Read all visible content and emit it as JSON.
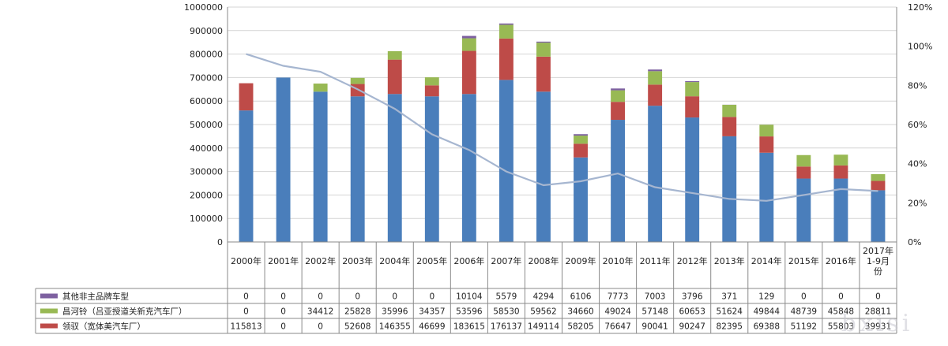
{
  "chart_data": {
    "type": "bar",
    "stacked": true,
    "categories": [
      "2000年",
      "2001年",
      "2002年",
      "2003年",
      "2004年",
      "2005年",
      "2006年",
      "2007年",
      "2008年",
      "2009年",
      "2010年",
      "2011年",
      "2012年",
      "2013年",
      "2014年",
      "2015年",
      "2016年",
      "2017年1-9月份"
    ],
    "series": [
      {
        "key": "base",
        "color": "#4a7ebb",
        "values": [
          560000,
          700000,
          640000,
          620000,
          630000,
          620000,
          630000,
          690000,
          640000,
          360000,
          520000,
          580000,
          530000,
          450000,
          380000,
          270000,
          270000,
          220000
        ]
      },
      {
        "name": "领驭（宽体美汽车厂）",
        "color": "#be4b48",
        "values": [
          115813,
          0,
          0,
          52608,
          146355,
          46699,
          183615,
          176137,
          149114,
          58205,
          76647,
          90041,
          90247,
          82395,
          69388,
          51192,
          55803,
          39931
        ]
      },
      {
        "name": "昌河铃（吕亚授道关新克汽车厂）",
        "color": "#98b954",
        "values": [
          0,
          0,
          34412,
          25828,
          35996,
          34357,
          53596,
          58530,
          59562,
          34660,
          49024,
          57148,
          60653,
          51624,
          49844,
          48739,
          45848,
          28811
        ]
      },
      {
        "name": "其他非主品牌车型",
        "color": "#7d60a0",
        "values": [
          0,
          0,
          0,
          0,
          0,
          0,
          10104,
          5579,
          4294,
          6106,
          7773,
          7003,
          3796,
          371,
          129,
          0,
          0,
          0
        ]
      }
    ],
    "line": {
      "color": "#a6b6d0",
      "values": [
        0.96,
        0.9,
        0.87,
        0.78,
        0.68,
        0.55,
        0.47,
        0.36,
        0.29,
        0.31,
        0.35,
        0.28,
        0.25,
        0.22,
        0.21,
        0.24,
        0.27,
        0.26
      ]
    },
    "y_left": {
      "min": 0,
      "max": 1000000,
      "step": 100000,
      "ticks": [
        "0",
        "100000",
        "200000",
        "300000",
        "400000",
        "500000",
        "600000",
        "700000",
        "800000",
        "900000",
        "1000000"
      ]
    },
    "y_right": {
      "min": 0,
      "max": 1.2,
      "ticks": [
        "0%",
        "20%",
        "40%",
        "60%",
        "80%",
        "100%",
        "120%"
      ]
    },
    "table_rows": [
      {
        "series": 3,
        "label": "其他非主品牌车型",
        "cells": [
          "0",
          "0",
          "0",
          "0",
          "0",
          "0",
          "10104",
          "5579",
          "4294",
          "6106",
          "7773",
          "7003",
          "3796",
          "371",
          "129",
          "0",
          "0",
          "0"
        ]
      },
      {
        "series": 2,
        "label": "昌河铃（吕亚授道关新克汽车厂）",
        "cells": [
          "0",
          "0",
          "34412",
          "25828",
          "35996",
          "34357",
          "53596",
          "58530",
          "59562",
          "34660",
          "49024",
          "57148",
          "60653",
          "51624",
          "49844",
          "48739",
          "45848",
          "28811"
        ]
      },
      {
        "series": 1,
        "label": "领驭（宽体美汽车厂）",
        "cells": [
          "115813",
          "0",
          "0",
          "52608",
          "146355",
          "46699",
          "183615",
          "176137",
          "149114",
          "58205",
          "76647",
          "90041",
          "90247",
          "82395",
          "69388",
          "51192",
          "55803",
          "39931"
        ]
      }
    ],
    "watermark": "bxisi",
    "legend": "table-left",
    "grid": true
  }
}
